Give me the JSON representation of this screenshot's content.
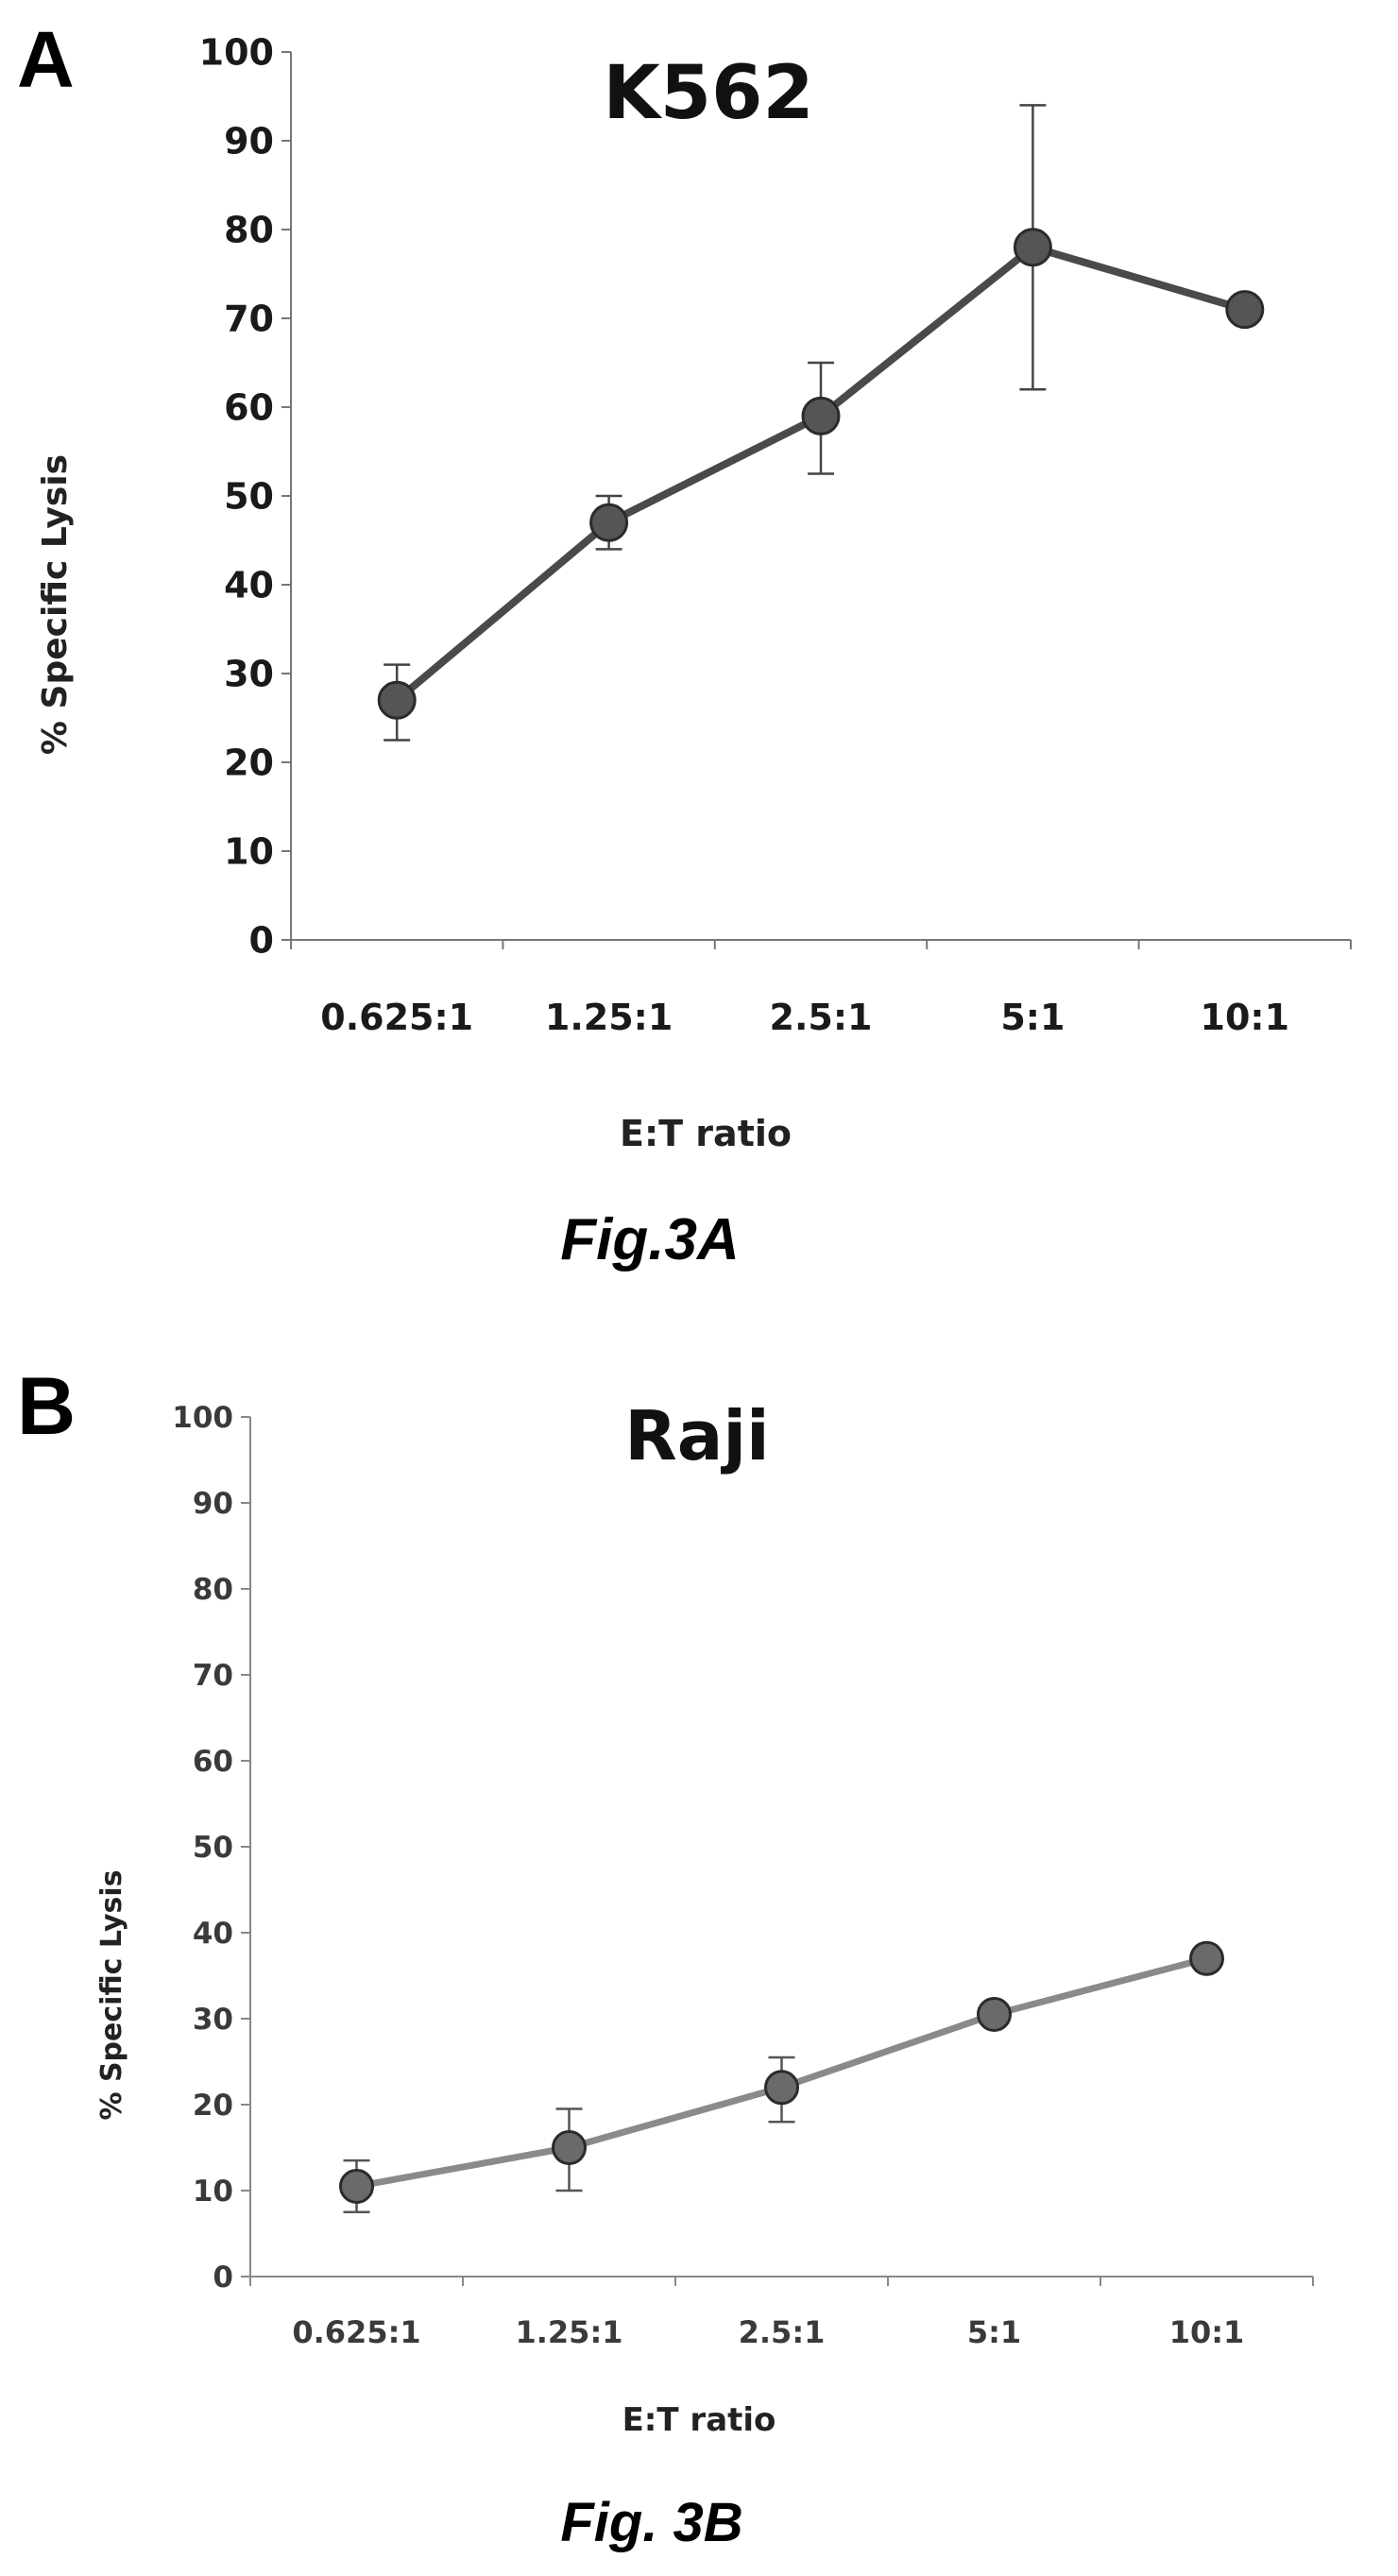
{
  "figure_a": {
    "panel_letter": "A",
    "caption": "Fig.3A"
  },
  "figure_b": {
    "panel_letter": "B",
    "caption": "Fig. 3B"
  },
  "chart_data": [
    {
      "type": "line",
      "title": "K562",
      "xlabel": "E:T ratio",
      "ylabel": "% Specific Lysis",
      "categories": [
        "0.625:1",
        "1.25:1",
        "2.5:1",
        "5:1",
        "10:1"
      ],
      "ylim": [
        0,
        100
      ],
      "yticks": [
        "0",
        "10",
        "20",
        "30",
        "40",
        "50",
        "60",
        "70",
        "80",
        "90",
        "100"
      ],
      "grid": false,
      "legend": "none",
      "series": [
        {
          "values": [
            27,
            47,
            59,
            78,
            71
          ],
          "error_low": [
            22.5,
            44,
            52.5,
            62,
            71
          ],
          "error_high": [
            31,
            50,
            65,
            94,
            71
          ],
          "color": "#555555",
          "line_color": "#4a4a4a"
        }
      ]
    },
    {
      "type": "line",
      "title": "Raji",
      "xlabel": "E:T ratio",
      "ylabel": "% Specific Lysis",
      "categories": [
        "0.625:1",
        "1.25:1",
        "2.5:1",
        "5:1",
        "10:1"
      ],
      "ylim": [
        0,
        100
      ],
      "yticks": [
        "0",
        "10",
        "20",
        "30",
        "40",
        "50",
        "60",
        "70",
        "80",
        "90",
        "100"
      ],
      "grid": false,
      "legend": "none",
      "series": [
        {
          "values": [
            10.5,
            15,
            22,
            30.5,
            37
          ],
          "error_low": [
            7.5,
            10,
            18,
            30.5,
            37
          ],
          "error_high": [
            13.5,
            19.5,
            25.5,
            30.5,
            37
          ],
          "color": "#6a6a6a",
          "line_color": "#8a8a8a"
        }
      ]
    }
  ]
}
